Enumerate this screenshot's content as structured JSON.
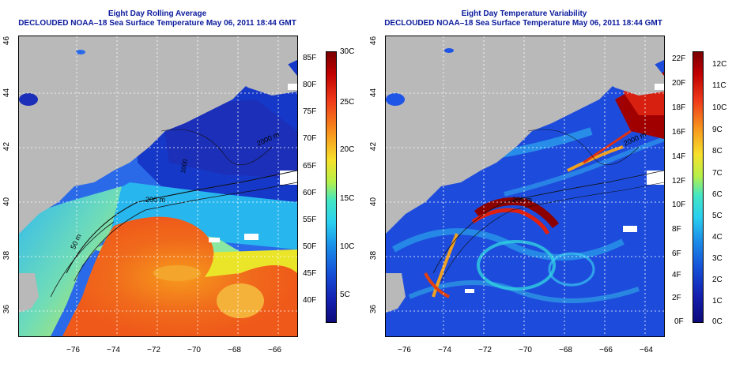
{
  "panels": [
    {
      "title1": "Eight Day Rolling Average",
      "title2": "DECLOUDED NOAA–18 Sea Surface Temperature May 06, 2011 18:44 GMT",
      "colorbar": {
        "name": "sst-colorbar",
        "f_labels": [
          "85F",
          "80F",
          "75F",
          "70F",
          "65F",
          "60F",
          "55F",
          "50F",
          "45F",
          "40F"
        ],
        "c_labels": [
          "30C",
          "25C",
          "20C",
          "15C",
          "10C",
          "5C"
        ]
      },
      "contour_labels": [
        "2000 m",
        "200 m",
        "50 m",
        "1000"
      ]
    },
    {
      "title1": "Eight Day Temperature Variability",
      "title2": "DECLOUDED NOAA–18 Sea Surface Temperature May 06, 2011 18:44 GMT",
      "colorbar": {
        "name": "variability-colorbar",
        "f_labels": [
          "22F",
          "20F",
          "18F",
          "16F",
          "14F",
          "12F",
          "10F",
          "8F",
          "6F",
          "4F",
          "2F",
          "0F"
        ],
        "c_labels": [
          "12C",
          "11C",
          "10C",
          "9C",
          "8C",
          "7C",
          "6C",
          "5C",
          "4C",
          "3C",
          "2C",
          "1C",
          "0C"
        ]
      },
      "contour_labels": [
        "2000 m",
        "200 m"
      ]
    }
  ],
  "axes": {
    "lon": [
      "−76",
      "−74",
      "−72",
      "−70",
      "−68",
      "−66",
      "−64"
    ],
    "lat": [
      "46",
      "44",
      "42",
      "40",
      "38",
      "36"
    ]
  },
  "colors": {
    "title": "#0b1a9c",
    "land": "#b9b9b9",
    "cloud": "#ffffff"
  }
}
